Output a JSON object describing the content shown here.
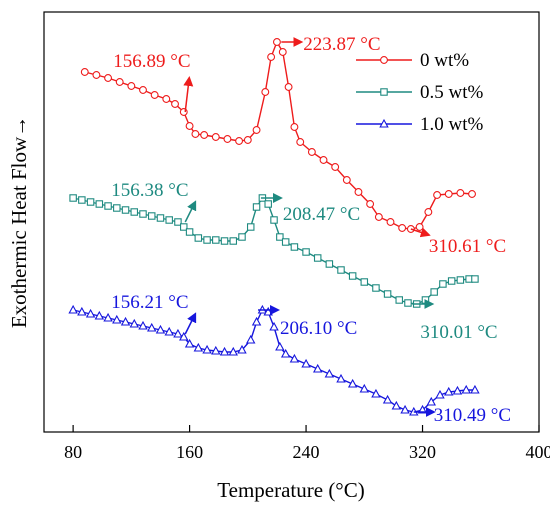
{
  "chart_data": {
    "type": "line",
    "xlabel": "Temperature (°C)",
    "ylabel": "Exothermic Heat Flow→",
    "xlim": [
      60,
      400
    ],
    "xticks": [
      80,
      160,
      240,
      320,
      400
    ],
    "xtick_labels": [
      "80",
      "160",
      "240",
      "320",
      "400"
    ],
    "grid": false,
    "legend_position": "top-right",
    "y_axis_ticks_shown": false,
    "series": [
      {
        "name": "0 wt%",
        "color": "#ee1c1c",
        "marker": "circle",
        "points": [
          [
            88,
            60
          ],
          [
            96,
            63
          ],
          [
            104,
            66
          ],
          [
            112,
            70
          ],
          [
            120,
            74
          ],
          [
            128,
            78
          ],
          [
            136,
            83
          ],
          [
            144,
            87
          ],
          [
            150,
            92
          ],
          [
            156,
            100
          ],
          [
            160,
            114
          ],
          [
            164,
            122
          ],
          [
            170,
            123
          ],
          [
            178,
            125
          ],
          [
            186,
            127
          ],
          [
            194,
            129
          ],
          [
            200,
            128
          ],
          [
            206,
            118
          ],
          [
            212,
            80
          ],
          [
            216,
            45
          ],
          [
            220,
            30
          ],
          [
            224,
            40
          ],
          [
            228,
            75
          ],
          [
            232,
            115
          ],
          [
            236,
            130
          ],
          [
            244,
            140
          ],
          [
            252,
            148
          ],
          [
            260,
            155
          ],
          [
            268,
            168
          ],
          [
            276,
            180
          ],
          [
            284,
            192
          ],
          [
            290,
            205
          ],
          [
            298,
            210
          ],
          [
            306,
            216
          ],
          [
            312,
            217
          ],
          [
            318,
            215
          ],
          [
            324,
            200
          ],
          [
            330,
            183
          ],
          [
            338,
            182
          ],
          [
            346,
            181
          ],
          [
            354,
            182
          ]
        ]
      },
      {
        "name": "0.5 wt%",
        "color": "#1e8a80",
        "marker": "square",
        "points": [
          [
            80,
            186
          ],
          [
            86,
            188
          ],
          [
            92,
            190
          ],
          [
            98,
            192
          ],
          [
            104,
            194
          ],
          [
            110,
            196
          ],
          [
            116,
            198
          ],
          [
            122,
            200
          ],
          [
            128,
            202
          ],
          [
            134,
            204
          ],
          [
            140,
            206
          ],
          [
            146,
            208
          ],
          [
            152,
            210
          ],
          [
            156,
            215
          ],
          [
            160,
            220
          ],
          [
            166,
            226
          ],
          [
            172,
            228
          ],
          [
            178,
            228
          ],
          [
            184,
            229
          ],
          [
            190,
            229
          ],
          [
            196,
            225
          ],
          [
            202,
            215
          ],
          [
            206,
            195
          ],
          [
            210,
            186
          ],
          [
            214,
            192
          ],
          [
            218,
            208
          ],
          [
            222,
            225
          ],
          [
            226,
            230
          ],
          [
            232,
            235
          ],
          [
            240,
            240
          ],
          [
            248,
            246
          ],
          [
            256,
            252
          ],
          [
            264,
            258
          ],
          [
            272,
            264
          ],
          [
            280,
            270
          ],
          [
            288,
            276
          ],
          [
            296,
            282
          ],
          [
            304,
            288
          ],
          [
            310,
            291
          ],
          [
            316,
            292
          ],
          [
            322,
            288
          ],
          [
            328,
            280
          ],
          [
            334,
            272
          ],
          [
            340,
            269
          ],
          [
            346,
            268
          ],
          [
            352,
            267
          ],
          [
            356,
            267
          ]
        ]
      },
      {
        "name": "1.0 wt%",
        "color": "#1616dd",
        "marker": "triangle",
        "points": [
          [
            80,
            298
          ],
          [
            86,
            300
          ],
          [
            92,
            302
          ],
          [
            98,
            304
          ],
          [
            104,
            306
          ],
          [
            110,
            308
          ],
          [
            116,
            310
          ],
          [
            122,
            312
          ],
          [
            128,
            314
          ],
          [
            134,
            316
          ],
          [
            140,
            318
          ],
          [
            146,
            320
          ],
          [
            152,
            322
          ],
          [
            156,
            325
          ],
          [
            160,
            332
          ],
          [
            166,
            336
          ],
          [
            172,
            338
          ],
          [
            178,
            339
          ],
          [
            184,
            340
          ],
          [
            190,
            340
          ],
          [
            196,
            338
          ],
          [
            202,
            328
          ],
          [
            206,
            310
          ],
          [
            210,
            298
          ],
          [
            214,
            300
          ],
          [
            218,
            315
          ],
          [
            222,
            335
          ],
          [
            226,
            342
          ],
          [
            232,
            347
          ],
          [
            240,
            352
          ],
          [
            248,
            357
          ],
          [
            256,
            362
          ],
          [
            264,
            367
          ],
          [
            272,
            372
          ],
          [
            280,
            377
          ],
          [
            288,
            382
          ],
          [
            296,
            388
          ],
          [
            302,
            394
          ],
          [
            308,
            398
          ],
          [
            314,
            400
          ],
          [
            320,
            398
          ],
          [
            326,
            390
          ],
          [
            332,
            383
          ],
          [
            338,
            380
          ],
          [
            344,
            379
          ],
          [
            350,
            378
          ],
          [
            356,
            378
          ]
        ]
      }
    ],
    "annotations": [
      {
        "text": "156.89 °C",
        "color": "#ee1c1c",
        "x": 157,
        "y": 100,
        "dir": "up"
      },
      {
        "text": "223.87 °C",
        "color": "#ee1c1c",
        "x": 223,
        "y": 30,
        "dir": "right"
      },
      {
        "text": "310.61 °C",
        "color": "#ee1c1c",
        "x": 312,
        "y": 217,
        "dir": "right-down"
      },
      {
        "text": "156.38 °C",
        "color": "#1e8a80",
        "x": 157,
        "y": 210,
        "dir": "up-right"
      },
      {
        "text": "208.47 °C",
        "color": "#1e8a80",
        "x": 209,
        "y": 186,
        "dir": "right"
      },
      {
        "text": "310.01 °C",
        "color": "#1e8a80",
        "x": 313,
        "y": 292,
        "dir": "right"
      },
      {
        "text": "156.21 °C",
        "color": "#1616dd",
        "x": 157,
        "y": 322,
        "dir": "up-right"
      },
      {
        "text": "206.10 °C",
        "color": "#1616dd",
        "x": 207,
        "y": 298,
        "dir": "right"
      },
      {
        "text": "310.49 °C",
        "color": "#1616dd",
        "x": 314,
        "y": 400,
        "dir": "right"
      }
    ]
  }
}
